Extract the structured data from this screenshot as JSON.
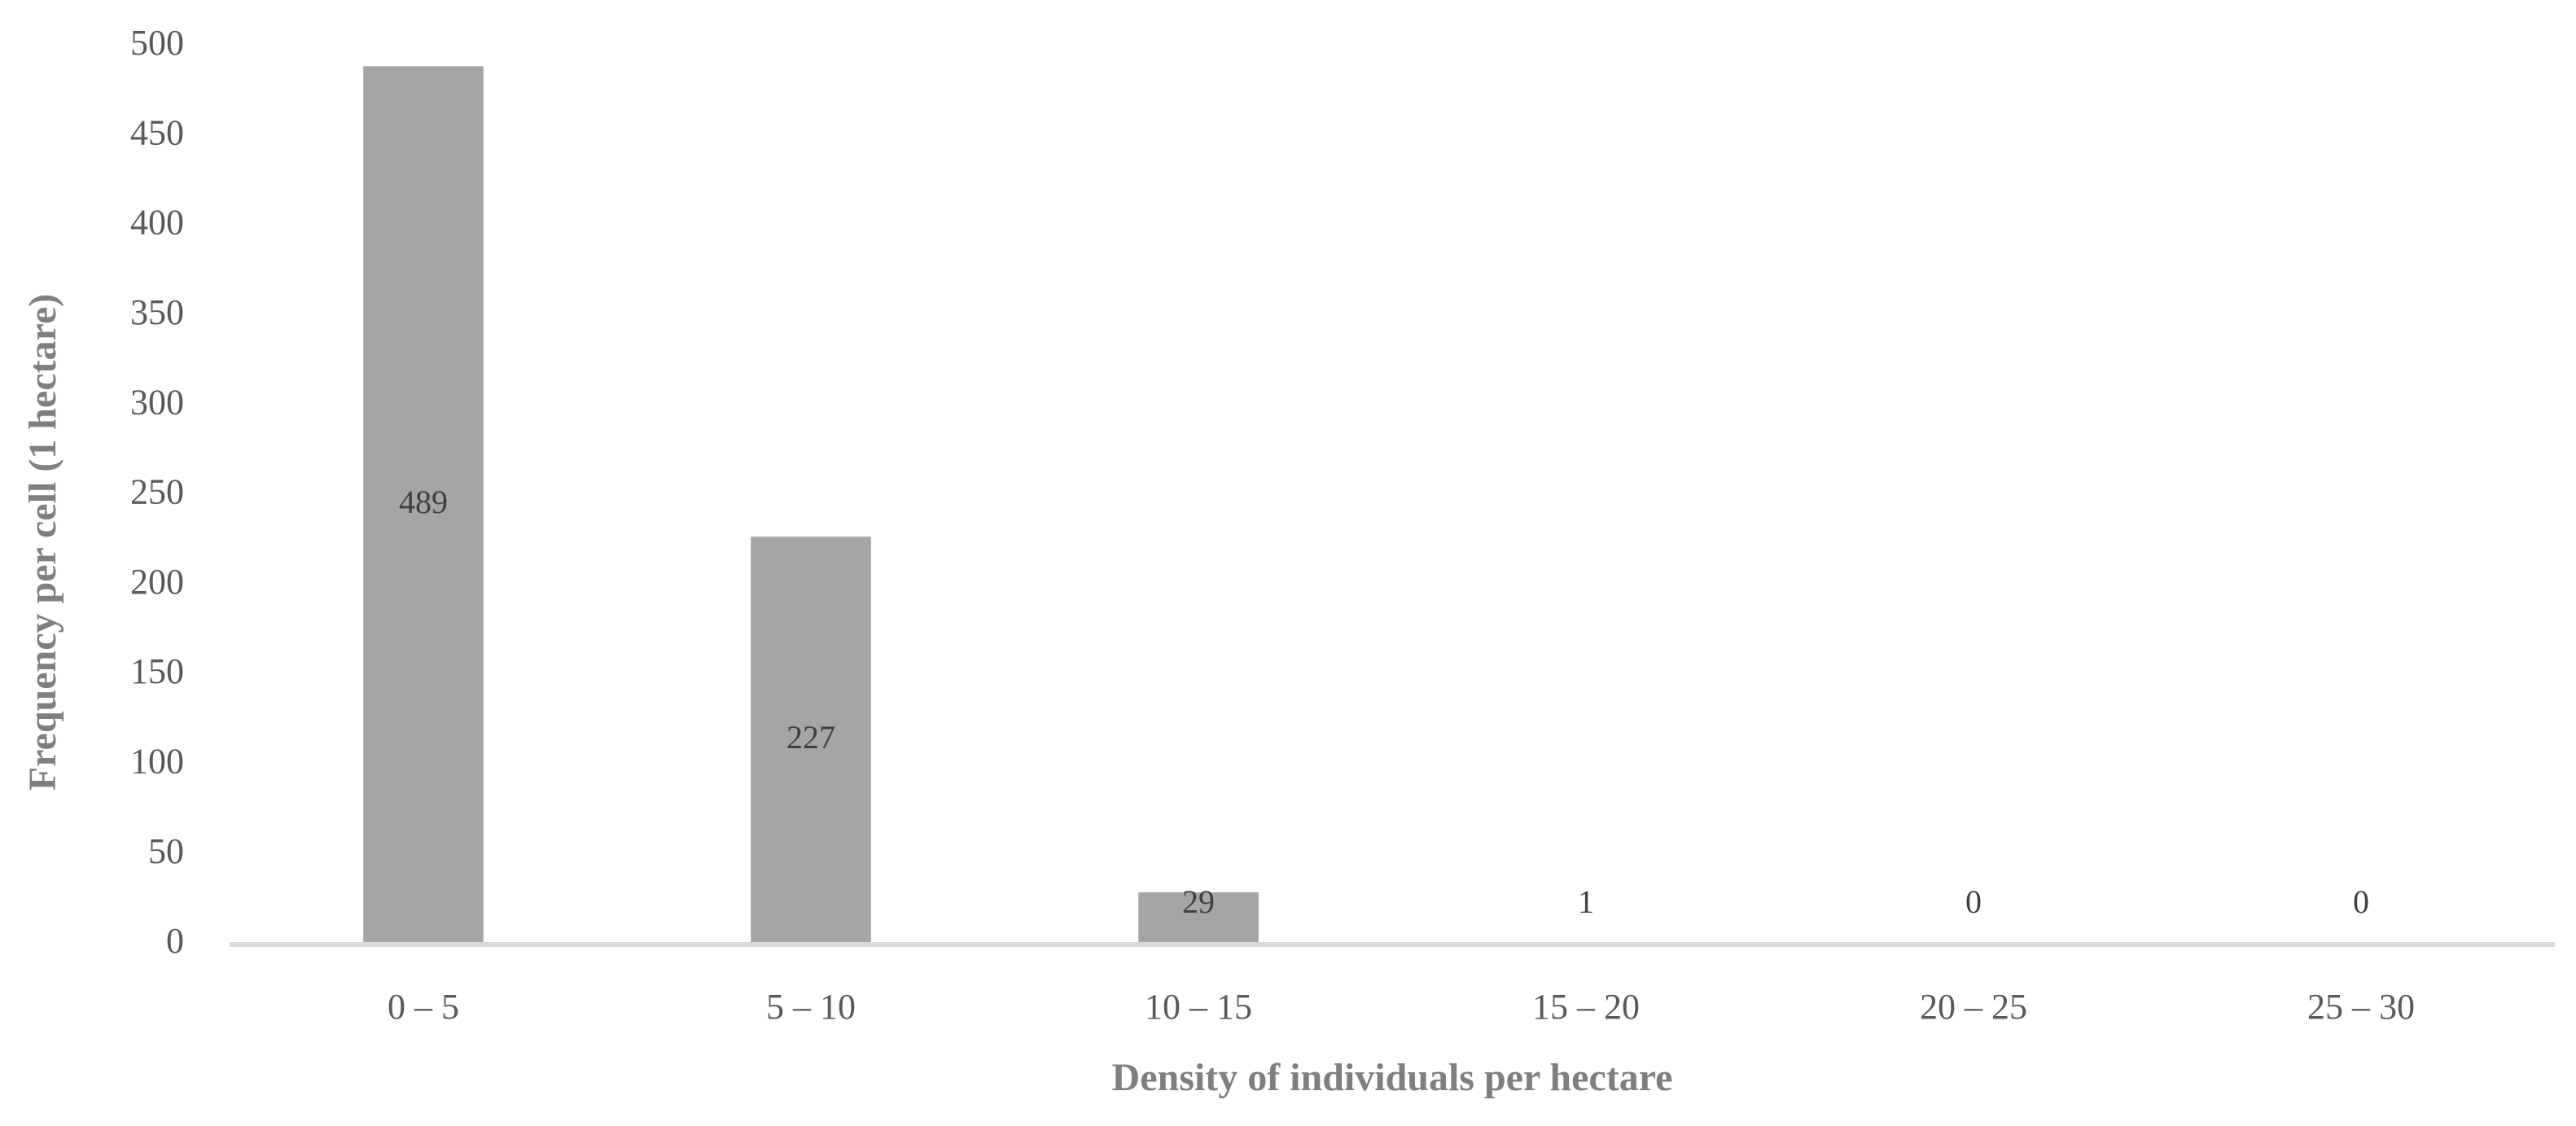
{
  "chart_data": {
    "type": "bar",
    "x_label": "Density of individuals  per hectare",
    "y_label": "Frequency per cell (1 hectare)",
    "categories": [
      "0 – 5",
      "5 – 10",
      "10 – 15",
      "15 – 20",
      "20 – 25",
      "25 – 30"
    ],
    "values": [
      489,
      227,
      29,
      1,
      0,
      0
    ],
    "color": "#a5a5a5",
    "ylim": [
      0,
      500
    ],
    "yticks": [
      0,
      50,
      100,
      150,
      200,
      250,
      300,
      350,
      400,
      450,
      500
    ],
    "grid": false,
    "data_labels": true
  }
}
